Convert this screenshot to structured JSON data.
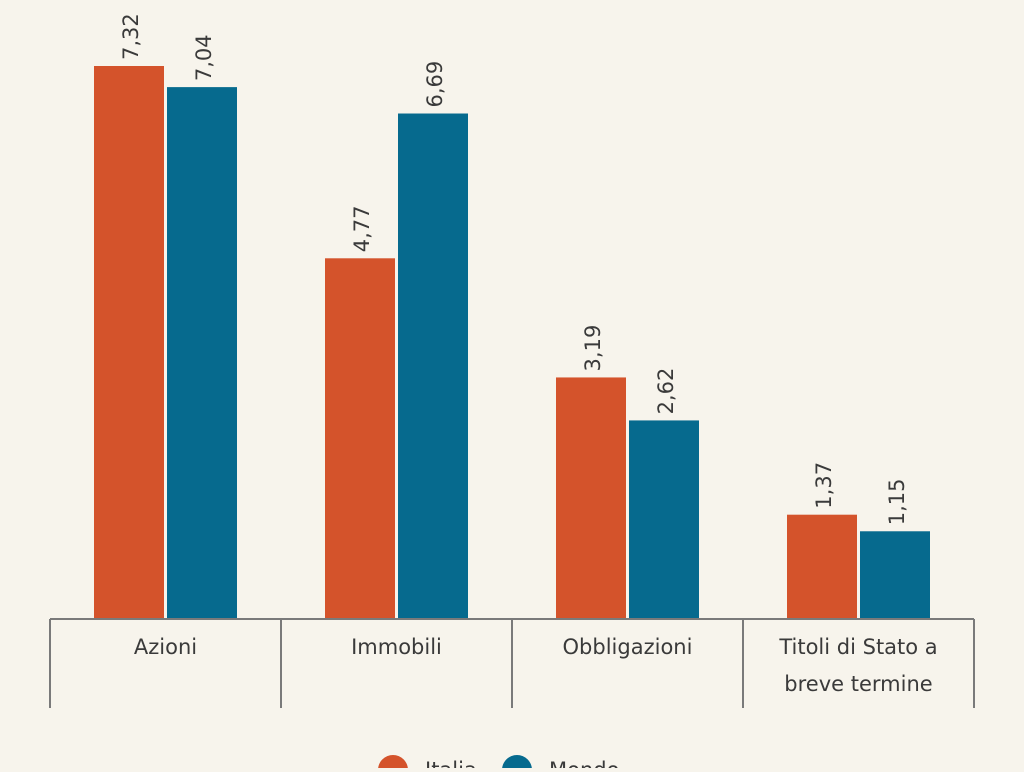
{
  "chart_data": {
    "type": "bar",
    "categories": [
      "Azioni",
      "Immobili",
      "Obbligazioni",
      "Titoli di Stato a breve termine"
    ],
    "category_lines": [
      [
        "Azioni"
      ],
      [
        "Immobili"
      ],
      [
        "Obbligazioni"
      ],
      [
        "Titoli di Stato a",
        "breve termine"
      ]
    ],
    "series": [
      {
        "name": "Italia",
        "values": [
          7.32,
          4.77,
          3.19,
          1.37
        ],
        "labels": [
          "7,32",
          "4,77",
          "3,19",
          "1,37"
        ]
      },
      {
        "name": "Mondo",
        "values": [
          7.04,
          6.69,
          2.62,
          1.15
        ],
        "labels": [
          "7,04",
          "6,69",
          "2,62",
          "1,15"
        ]
      }
    ],
    "title": "",
    "xlabel": "",
    "ylabel": "",
    "ylim": [
      0,
      7.9
    ],
    "grid": false,
    "legend": "bottom-center"
  },
  "colors": {
    "Italia": "#d4532b",
    "Mondo": "#066a8e",
    "axis": "#7a7a7a",
    "background": "#f7f4ec"
  }
}
